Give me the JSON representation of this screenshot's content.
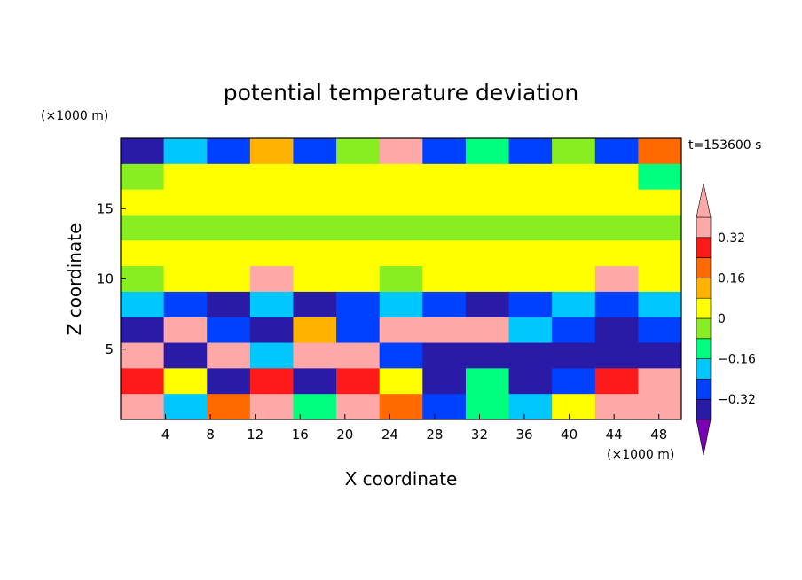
{
  "chart_data": {
    "type": "heatmap",
    "title": "potential temperature deviation",
    "xlabel": "X coordinate",
    "ylabel": "Z coordinate",
    "x_unit": "(×1000 m)",
    "y_unit": "(×1000 m)",
    "time_label": "t=153600 s",
    "xlim": [
      0,
      50
    ],
    "ylim": [
      0,
      20
    ],
    "x_ticks": [
      4,
      8,
      12,
      16,
      20,
      24,
      28,
      32,
      36,
      40,
      44,
      48
    ],
    "y_ticks": [
      5,
      10,
      15
    ],
    "colorbar": {
      "tick_values": [
        0.32,
        0.16,
        0,
        -0.16,
        -0.32
      ],
      "tick_labels": [
        "0.32",
        "0.16",
        "0",
        "−0.16",
        "−0.32"
      ],
      "levels": [
        -0.4,
        -0.32,
        -0.24,
        -0.16,
        -0.08,
        0,
        0.08,
        0.16,
        0.24,
        0.32,
        0.4
      ],
      "colors": [
        "#7a00b8",
        "#2a1aa8",
        "#0040ff",
        "#00c8ff",
        "#00ff7f",
        "#88ee22",
        "#ffff00",
        "#ffb300",
        "#ff6a00",
        "#ff1a1a",
        "#ffa8a8"
      ],
      "extend": "both"
    },
    "field": [
      [
        -0.34,
        -0.2,
        -0.3,
        0.1,
        -0.28,
        -0.05,
        0.36,
        -0.3,
        -0.12,
        -0.3,
        -0.05,
        -0.32,
        0.2
      ],
      [
        -0.05,
        0.04,
        0.03,
        0.03,
        0.05,
        0.04,
        0.03,
        0.05,
        0.04,
        0.03,
        0.04,
        0.05,
        -0.1
      ],
      [
        0.05,
        0.04,
        0.05,
        0.04,
        0.05,
        0.04,
        0.05,
        0.04,
        0.05,
        0.04,
        0.04,
        0.05,
        0.04
      ],
      [
        -0.01,
        -0.01,
        -0.01,
        -0.01,
        -0.01,
        -0.01,
        -0.01,
        -0.01,
        -0.01,
        -0.01,
        -0.01,
        -0.01,
        -0.01
      ],
      [
        0.02,
        0.01,
        0.02,
        0.01,
        0.02,
        0.02,
        0.01,
        0.02,
        0.03,
        0.01,
        0.02,
        0.01,
        0.02
      ],
      [
        -0.01,
        0.01,
        0.0,
        0.45,
        0.01,
        0.0,
        -0.01,
        0.0,
        0.01,
        0.0,
        0.01,
        0.45,
        0.0
      ],
      [
        -0.22,
        -0.3,
        -0.36,
        -0.2,
        -0.36,
        -0.3,
        -0.2,
        -0.3,
        -0.36,
        -0.3,
        -0.22,
        -0.3,
        -0.2
      ],
      [
        -0.36,
        0.45,
        -0.3,
        -0.36,
        0.1,
        -0.3,
        0.45,
        0.45,
        0.45,
        -0.2,
        -0.3,
        -0.36,
        -0.3
      ],
      [
        0.45,
        -0.36,
        0.45,
        -0.2,
        0.45,
        0.45,
        -0.3,
        -0.36,
        -0.36,
        -0.36,
        -0.36,
        -0.36,
        -0.36
      ],
      [
        0.3,
        0.0,
        -0.36,
        0.3,
        -0.36,
        0.3,
        0.0,
        -0.36,
        -0.1,
        -0.36,
        -0.3,
        0.3,
        0.45
      ],
      [
        0.32,
        -0.2,
        0.2,
        0.32,
        -0.12,
        0.36,
        0.2,
        -0.3,
        -0.1,
        -0.2,
        0.0,
        0.32,
        0.36
      ]
    ]
  }
}
